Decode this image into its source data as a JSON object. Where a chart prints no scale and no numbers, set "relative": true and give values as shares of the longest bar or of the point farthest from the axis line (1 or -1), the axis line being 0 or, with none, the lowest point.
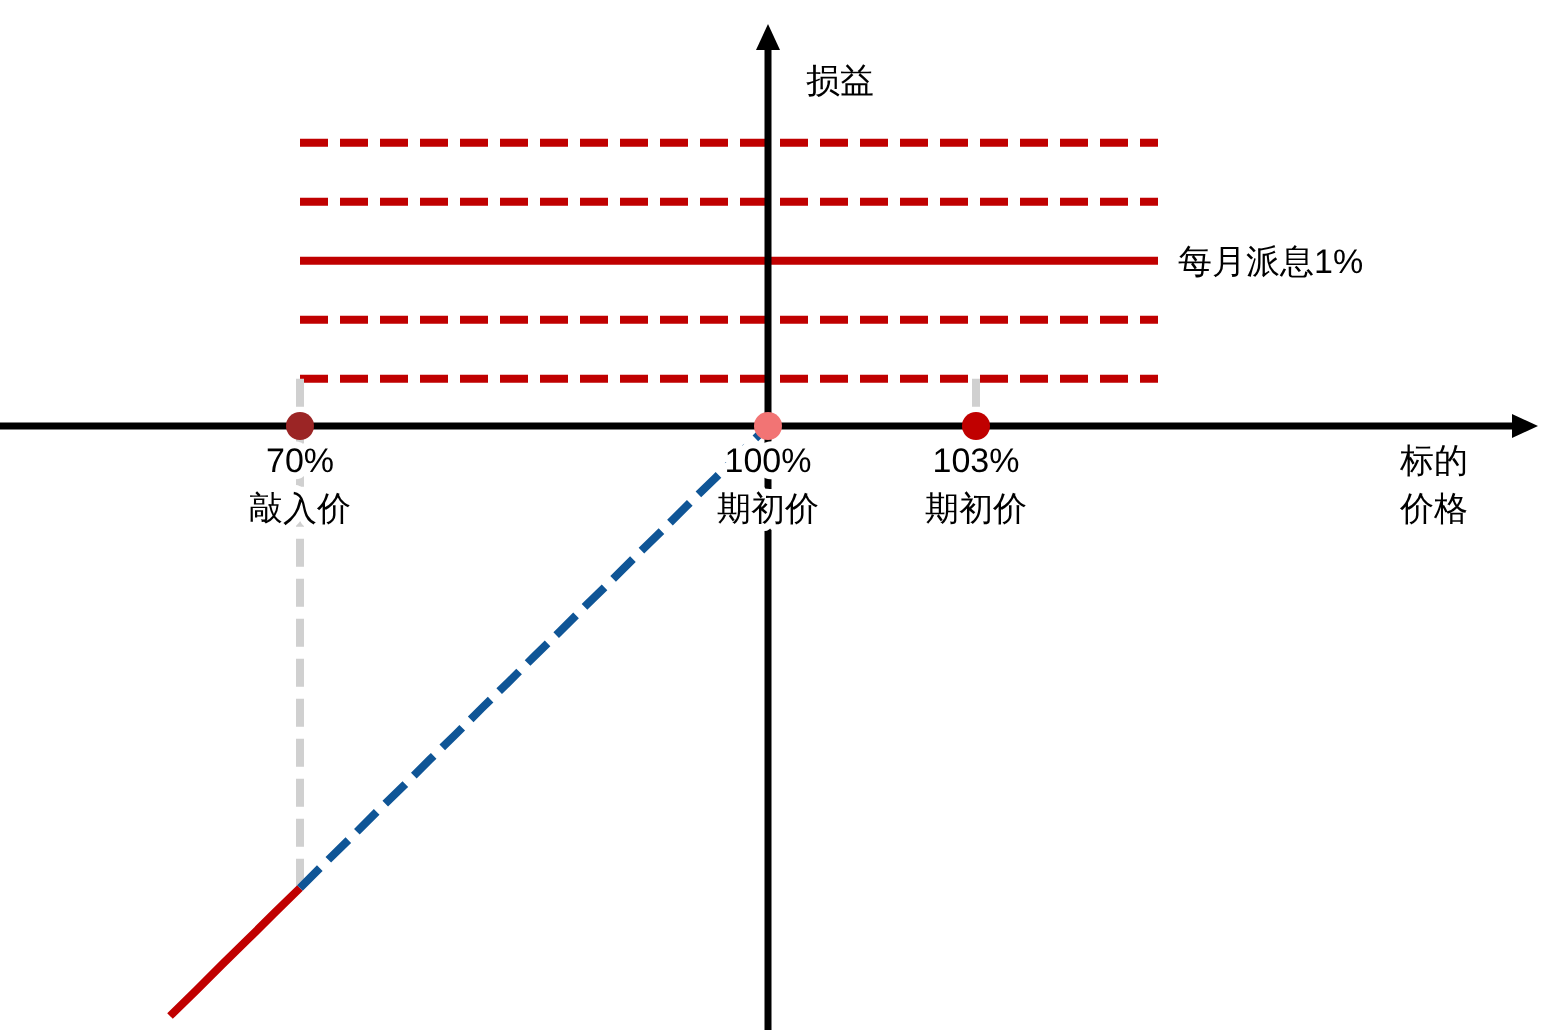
{
  "chart_data": {
    "type": "line",
    "relative": true,
    "ylabel": "损益",
    "annotations": [
      "标的价格"
    ],
    "categories": [
      null,
      null,
      null,
      null,
      null,
      "70%\n敲入价",
      null,
      null,
      null,
      null,
      null,
      null,
      null,
      null,
      null,
      null,
      null,
      null,
      null,
      null,
      null,
      null,
      null,
      "100%\n期初价",
      null,
      null,
      null,
      null,
      null,
      null,
      null,
      "103%\n期初价",
      null,
      null,
      null,
      null,
      null,
      null,
      null
    ],
    "series": [
      {
        "color": "#c00000",
        "line_style": "dashed",
        "values": [
          null,
          null,
          null,
          null,
          null,
          0.48,
          0.48,
          0.48,
          0.48,
          0.48,
          0.48,
          0.48,
          0.48,
          0.48,
          0.48,
          0.48,
          0.48,
          0.48,
          0.48,
          0.48,
          0.48,
          0.48,
          0.48,
          0.48,
          0.48,
          0.48,
          0.48,
          0.48,
          0.48,
          0.48,
          0.48,
          0.48,
          0.48,
          0.48,
          0.48,
          0.48,
          0.48,
          0.48,
          0.48
        ]
      },
      {
        "color": "#c00000",
        "line_style": "dashed",
        "values": [
          null,
          null,
          null,
          null,
          null,
          0.38,
          0.38,
          0.38,
          0.38,
          0.38,
          0.38,
          0.38,
          0.38,
          0.38,
          0.38,
          0.38,
          0.38,
          0.38,
          0.38,
          0.38,
          0.38,
          0.38,
          0.38,
          0.38,
          0.38,
          0.38,
          0.38,
          0.38,
          0.38,
          0.38,
          0.38,
          0.38,
          0.38,
          0.38,
          0.38,
          0.38,
          0.38,
          0.38,
          0.38
        ]
      },
      {
        "color": "#c00000",
        "line_style": "solid",
        "name": "每月派息1%",
        "values": [
          null,
          null,
          null,
          null,
          null,
          0.28,
          0.28,
          0.28,
          0.28,
          0.28,
          0.28,
          0.28,
          0.28,
          0.28,
          0.28,
          0.28,
          0.28,
          0.28,
          0.28,
          0.28,
          0.28,
          0.28,
          0.28,
          0.28,
          0.28,
          0.28,
          0.28,
          0.28,
          0.28,
          0.28,
          0.28,
          0.28,
          0.28,
          0.28,
          0.28,
          0.28,
          0.28,
          0.28,
          0.28
        ]
      },
      {
        "color": "#c00000",
        "line_style": "dashed",
        "values": [
          null,
          null,
          null,
          null,
          null,
          0.18,
          0.18,
          0.18,
          0.18,
          0.18,
          0.18,
          0.18,
          0.18,
          0.18,
          0.18,
          0.18,
          0.18,
          0.18,
          0.18,
          0.18,
          0.18,
          0.18,
          0.18,
          0.18,
          0.18,
          0.18,
          0.18,
          0.18,
          0.18,
          0.18,
          0.18,
          0.18,
          0.18,
          0.18,
          0.18,
          0.18,
          0.18,
          0.18,
          0.18
        ]
      },
      {
        "color": "#c00000",
        "line_style": "dashed",
        "values": [
          null,
          null,
          null,
          null,
          null,
          0.08,
          0.08,
          0.08,
          0.08,
          0.08,
          0.08,
          0.08,
          0.08,
          0.08,
          0.08,
          0.08,
          0.08,
          0.08,
          0.08,
          0.08,
          0.08,
          0.08,
          0.08,
          0.08,
          0.08,
          0.08,
          0.08,
          0.08,
          0.08,
          0.08,
          0.08,
          0.08,
          0.08,
          0.08,
          0.08,
          0.08,
          0.08,
          0.08,
          0.08
        ]
      },
      {
        "color": "#d0d0d0",
        "line_style": "dashed",
        "x": [
          "70%\n敲入价",
          "70%\n敲入价"
        ],
        "values": [
          0.08,
          -0.783
        ]
      },
      {
        "color": "#d0d0d0",
        "line_style": "dashed",
        "x": [
          "103%\n期初价",
          "103%\n期初价"
        ],
        "values": [
          0.08,
          0
        ]
      },
      {
        "color": "#c00000",
        "line_style": "solid",
        "values": [
          -1,
          -0.957,
          -0.913,
          -0.87,
          -0.826,
          -0.783,
          null,
          null,
          null,
          null,
          null,
          null,
          null,
          null,
          null,
          null,
          null,
          null,
          null,
          null,
          null,
          null,
          null,
          null,
          null,
          null,
          null,
          null,
          null,
          null,
          null,
          null,
          null,
          null,
          null,
          null,
          null,
          null,
          null
        ]
      },
      {
        "color": "#0f5596",
        "line_style": "dashed",
        "values": [
          null,
          null,
          null,
          null,
          null,
          -0.783,
          -0.739,
          -0.696,
          -0.652,
          -0.609,
          -0.565,
          -0.522,
          -0.478,
          -0.435,
          -0.391,
          -0.348,
          -0.304,
          -0.261,
          -0.217,
          -0.174,
          -0.13,
          -0.087,
          -0.043,
          0,
          null,
          null,
          null,
          null,
          null,
          null,
          null,
          null,
          null,
          null,
          null,
          null,
          null,
          null,
          null
        ]
      },
      {
        "type": "scatter",
        "marker": "circle",
        "x": [
          "70%\n敲入价",
          "100%\n期初价",
          "103%\n期初价"
        ],
        "values": [
          0,
          0,
          0
        ],
        "colors": [
          "#9b2525",
          "#f27474",
          "#c00000"
        ]
      }
    ]
  }
}
